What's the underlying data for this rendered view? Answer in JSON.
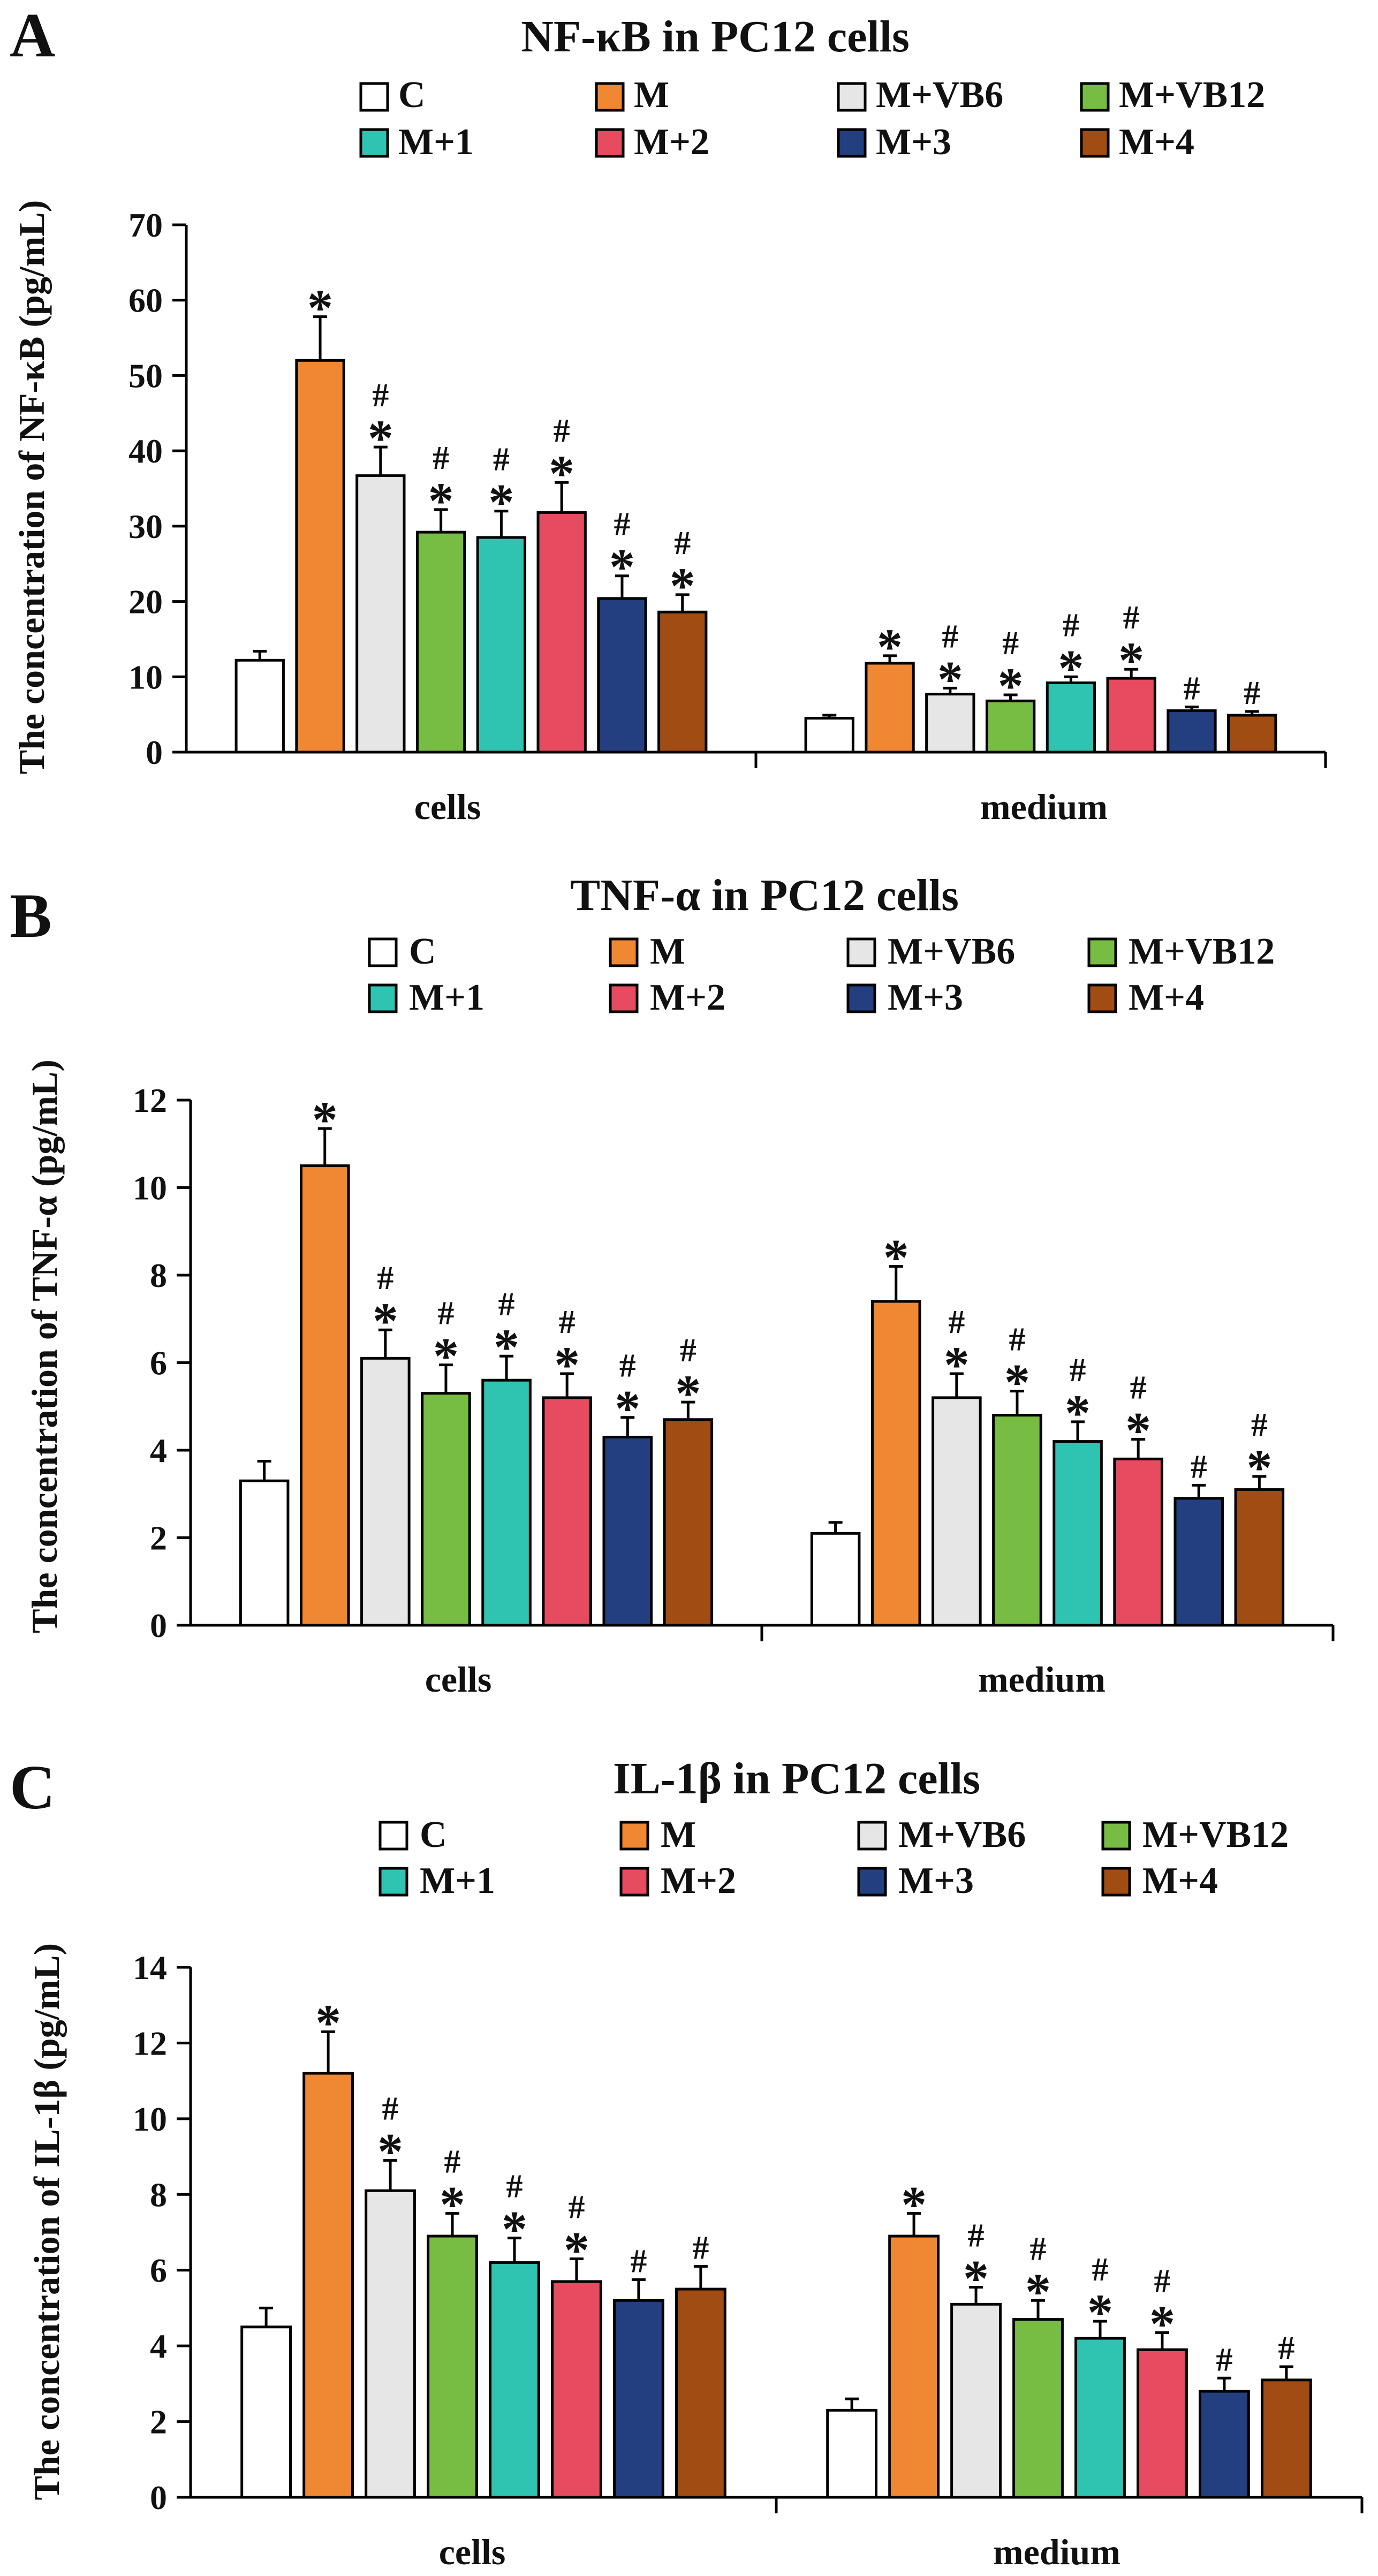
{
  "figure": {
    "colors": {
      "C": "#ffffff",
      "M": "#f08733",
      "M+VB6": "#e6e6e6",
      "M+VB12": "#78bd43",
      "M+1": "#2fc4b2",
      "M+2": "#e64b5f",
      "M+3": "#233f80",
      "M+4": "#a04c13"
    }
  },
  "chart_data": [
    {
      "panel_letter": "A",
      "type": "bar",
      "title": "NF-κB in PC12 cells",
      "ylabel": "The concentration of NF-κB (pg/mL)",
      "xlabel": "",
      "ylim": [
        0,
        70
      ],
      "yticks": [
        0,
        10,
        20,
        30,
        40,
        50,
        60,
        70
      ],
      "grid": false,
      "legend_position": "top",
      "legend": [
        "C",
        "M",
        "M+VB6",
        "M+VB12",
        "M+1",
        "M+2",
        "M+3",
        "M+4"
      ],
      "categories": [
        "cells",
        "medium"
      ],
      "series": [
        {
          "name": "C",
          "values": [
            12.2,
            4.5
          ],
          "errors": [
            1.2,
            0.4
          ],
          "marks": [
            "",
            ""
          ]
        },
        {
          "name": "M",
          "values": [
            52.0,
            11.8
          ],
          "errors": [
            5.8,
            1.0
          ],
          "marks": [
            "*",
            "*"
          ]
        },
        {
          "name": "M+VB6",
          "values": [
            36.7,
            7.7
          ],
          "errors": [
            3.8,
            0.8
          ],
          "marks": [
            "*#",
            "*#"
          ]
        },
        {
          "name": "M+VB12",
          "values": [
            29.2,
            6.8
          ],
          "errors": [
            3.0,
            0.8
          ],
          "marks": [
            "*#",
            "*#"
          ]
        },
        {
          "name": "M+1",
          "values": [
            28.5,
            9.2
          ],
          "errors": [
            3.5,
            0.8
          ],
          "marks": [
            "*#",
            "*#"
          ]
        },
        {
          "name": "M+2",
          "values": [
            31.8,
            9.8
          ],
          "errors": [
            4.0,
            1.2
          ],
          "marks": [
            "*#",
            "*#"
          ]
        },
        {
          "name": "M+3",
          "values": [
            20.4,
            5.5
          ],
          "errors": [
            3.0,
            0.5
          ],
          "marks": [
            "*#",
            "#"
          ]
        },
        {
          "name": "M+4",
          "values": [
            18.6,
            4.9
          ],
          "errors": [
            2.3,
            0.5
          ],
          "marks": [
            "*#",
            "#"
          ]
        }
      ]
    },
    {
      "panel_letter": "B",
      "type": "bar",
      "title": "TNF-α in PC12 cells",
      "ylabel": "The concentration of TNF-α (pg/mL)",
      "xlabel": "",
      "ylim": [
        0,
        12
      ],
      "yticks": [
        0,
        2,
        4,
        6,
        8,
        10,
        12
      ],
      "grid": false,
      "legend_position": "top",
      "legend": [
        "C",
        "M",
        "M+VB6",
        "M+VB12",
        "M+1",
        "M+2",
        "M+3",
        "M+4"
      ],
      "categories": [
        "cells",
        "medium"
      ],
      "series": [
        {
          "name": "C",
          "values": [
            3.3,
            2.1
          ],
          "errors": [
            0.45,
            0.25
          ],
          "marks": [
            "",
            ""
          ]
        },
        {
          "name": "M",
          "values": [
            10.5,
            7.4
          ],
          "errors": [
            0.85,
            0.8
          ],
          "marks": [
            "*",
            "*"
          ]
        },
        {
          "name": "M+VB6",
          "values": [
            6.1,
            5.2
          ],
          "errors": [
            0.65,
            0.55
          ],
          "marks": [
            "*#",
            "*#"
          ]
        },
        {
          "name": "M+VB12",
          "values": [
            5.3,
            4.8
          ],
          "errors": [
            0.65,
            0.55
          ],
          "marks": [
            "*#",
            "*#"
          ]
        },
        {
          "name": "M+1",
          "values": [
            5.6,
            4.2
          ],
          "errors": [
            0.55,
            0.45
          ],
          "marks": [
            "*#",
            "*#"
          ]
        },
        {
          "name": "M+2",
          "values": [
            5.2,
            3.8
          ],
          "errors": [
            0.55,
            0.45
          ],
          "marks": [
            "*#",
            "*#"
          ]
        },
        {
          "name": "M+3",
          "values": [
            4.3,
            2.9
          ],
          "errors": [
            0.45,
            0.3
          ],
          "marks": [
            "*#",
            "#"
          ]
        },
        {
          "name": "M+4",
          "values": [
            4.7,
            3.1
          ],
          "errors": [
            0.4,
            0.3
          ],
          "marks": [
            "*#",
            "*#"
          ]
        }
      ]
    },
    {
      "panel_letter": "C",
      "type": "bar",
      "title": "IL-1β in PC12 cells",
      "ylabel": "The concentration of IL-1β (pg/mL)",
      "xlabel": "",
      "ylim": [
        0,
        14
      ],
      "yticks": [
        0,
        2,
        4,
        6,
        8,
        10,
        12,
        14
      ],
      "grid": false,
      "legend_position": "top",
      "legend": [
        "C",
        "M",
        "M+VB6",
        "M+VB12",
        "M+1",
        "M+2",
        "M+3",
        "M+4"
      ],
      "categories": [
        "cells",
        "medium"
      ],
      "series": [
        {
          "name": "C",
          "values": [
            4.5,
            2.3
          ],
          "errors": [
            0.5,
            0.3
          ],
          "marks": [
            "",
            ""
          ]
        },
        {
          "name": "M",
          "values": [
            11.2,
            6.9
          ],
          "errors": [
            1.1,
            0.6
          ],
          "marks": [
            "*",
            "*"
          ]
        },
        {
          "name": "M+VB6",
          "values": [
            8.1,
            5.1
          ],
          "errors": [
            0.8,
            0.45
          ],
          "marks": [
            "*#",
            "*#"
          ]
        },
        {
          "name": "M+VB12",
          "values": [
            6.9,
            4.7
          ],
          "errors": [
            0.6,
            0.5
          ],
          "marks": [
            "*#",
            "*#"
          ]
        },
        {
          "name": "M+1",
          "values": [
            6.2,
            4.2
          ],
          "errors": [
            0.65,
            0.45
          ],
          "marks": [
            "*#",
            "*#"
          ]
        },
        {
          "name": "M+2",
          "values": [
            5.7,
            3.9
          ],
          "errors": [
            0.6,
            0.45
          ],
          "marks": [
            "*#",
            "*#"
          ]
        },
        {
          "name": "M+3",
          "values": [
            5.2,
            2.8
          ],
          "errors": [
            0.55,
            0.35
          ],
          "marks": [
            "#",
            "#"
          ]
        },
        {
          "name": "M+4",
          "values": [
            5.5,
            3.1
          ],
          "errors": [
            0.6,
            0.35
          ],
          "marks": [
            "#",
            "#"
          ]
        }
      ]
    }
  ]
}
